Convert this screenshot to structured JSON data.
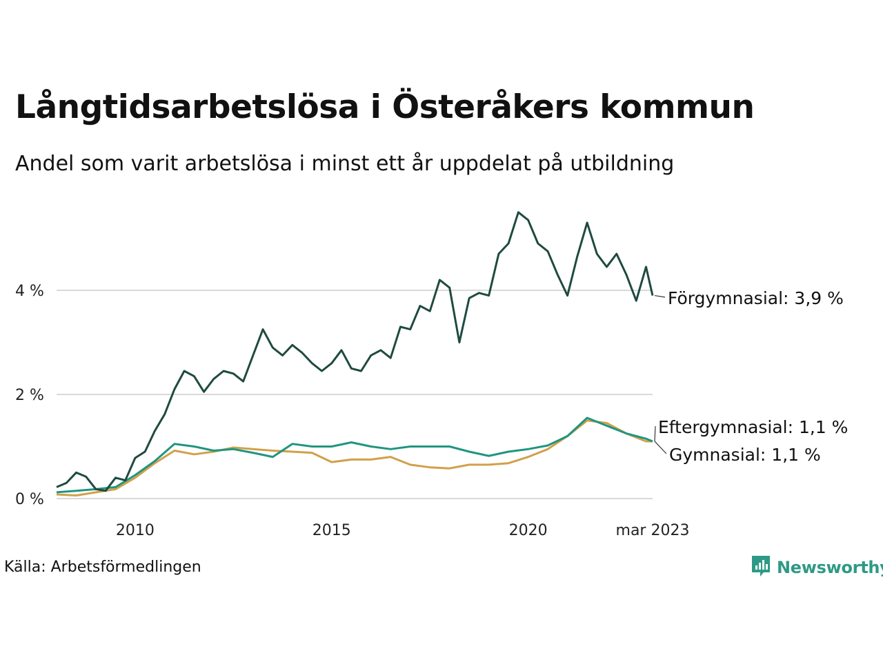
{
  "title": "Långtidsarbetslösa i Österåkers kommun",
  "subtitle": "Andel som varit arbetslösa i minst ett år uppdelat på utbildning",
  "source": "Källa: Arbetsförmedlingen",
  "brand": {
    "name": "Newsworthy",
    "icon": "newsworthy-logo-icon",
    "color": "#2e9a85"
  },
  "chart_data": {
    "type": "line",
    "title": "Långtidsarbetslösa i Österåkers kommun",
    "subtitle": "Andel som varit arbetslösa i minst ett år uppdelat på utbildning",
    "xlabel": "",
    "ylabel": "",
    "x_range": [
      "2008-01",
      "2023-03"
    ],
    "xticks": [
      {
        "x": "2010-01",
        "label": "2010"
      },
      {
        "x": "2015-01",
        "label": "2015"
      },
      {
        "x": "2020-01",
        "label": "2020"
      },
      {
        "x": "2023-03",
        "label": "mar 2023"
      }
    ],
    "ylim": [
      0,
      5.6
    ],
    "yticks": [
      {
        "value": 0,
        "label": "0 %"
      },
      {
        "value": 2,
        "label": "2 %"
      },
      {
        "value": 4,
        "label": "4 %"
      }
    ],
    "grid": "horizontal",
    "legend": "direct labels at line ends (right)",
    "series": [
      {
        "name": "Förgymnasial",
        "end_label": "Förgymnasial: 3,9 %",
        "color": "#1f4a40",
        "points": [
          [
            "2008-01",
            0.22
          ],
          [
            "2008-04",
            0.3
          ],
          [
            "2008-07",
            0.5
          ],
          [
            "2008-10",
            0.42
          ],
          [
            "2009-01",
            0.18
          ],
          [
            "2009-04",
            0.15
          ],
          [
            "2009-07",
            0.4
          ],
          [
            "2009-10",
            0.35
          ],
          [
            "2010-01",
            0.78
          ],
          [
            "2010-04",
            0.9
          ],
          [
            "2010-07",
            1.3
          ],
          [
            "2010-10",
            1.62
          ],
          [
            "2011-01",
            2.1
          ],
          [
            "2011-04",
            2.45
          ],
          [
            "2011-07",
            2.35
          ],
          [
            "2011-10",
            2.05
          ],
          [
            "2012-01",
            2.3
          ],
          [
            "2012-04",
            2.45
          ],
          [
            "2012-07",
            2.4
          ],
          [
            "2012-10",
            2.25
          ],
          [
            "2013-01",
            2.75
          ],
          [
            "2013-04",
            3.25
          ],
          [
            "2013-07",
            2.9
          ],
          [
            "2013-10",
            2.75
          ],
          [
            "2014-01",
            2.95
          ],
          [
            "2014-04",
            2.8
          ],
          [
            "2014-07",
            2.6
          ],
          [
            "2014-10",
            2.45
          ],
          [
            "2015-01",
            2.6
          ],
          [
            "2015-04",
            2.85
          ],
          [
            "2015-07",
            2.5
          ],
          [
            "2015-10",
            2.45
          ],
          [
            "2016-01",
            2.75
          ],
          [
            "2016-04",
            2.85
          ],
          [
            "2016-07",
            2.7
          ],
          [
            "2016-10",
            3.3
          ],
          [
            "2017-01",
            3.25
          ],
          [
            "2017-04",
            3.7
          ],
          [
            "2017-07",
            3.6
          ],
          [
            "2017-10",
            4.2
          ],
          [
            "2018-01",
            4.05
          ],
          [
            "2018-04",
            3.0
          ],
          [
            "2018-07",
            3.85
          ],
          [
            "2018-10",
            3.95
          ],
          [
            "2019-01",
            3.9
          ],
          [
            "2019-04",
            4.7
          ],
          [
            "2019-07",
            4.9
          ],
          [
            "2019-10",
            5.5
          ],
          [
            "2020-01",
            5.35
          ],
          [
            "2020-04",
            4.9
          ],
          [
            "2020-07",
            4.75
          ],
          [
            "2020-10",
            4.3
          ],
          [
            "2021-01",
            3.9
          ],
          [
            "2021-04",
            4.65
          ],
          [
            "2021-07",
            5.3
          ],
          [
            "2021-10",
            4.7
          ],
          [
            "2022-01",
            4.45
          ],
          [
            "2022-04",
            4.7
          ],
          [
            "2022-07",
            4.3
          ],
          [
            "2022-10",
            3.8
          ],
          [
            "2023-01",
            4.45
          ],
          [
            "2023-03",
            3.9
          ]
        ]
      },
      {
        "name": "Eftergymnasial",
        "end_label": "Eftergymnasial: 1,1 %",
        "color": "#1f9580",
        "points": [
          [
            "2008-01",
            0.12
          ],
          [
            "2008-07",
            0.15
          ],
          [
            "2009-01",
            0.18
          ],
          [
            "2009-07",
            0.22
          ],
          [
            "2010-01",
            0.45
          ],
          [
            "2010-07",
            0.72
          ],
          [
            "2011-01",
            1.05
          ],
          [
            "2011-07",
            1.0
          ],
          [
            "2012-01",
            0.92
          ],
          [
            "2012-07",
            0.95
          ],
          [
            "2013-01",
            0.88
          ],
          [
            "2013-07",
            0.8
          ],
          [
            "2014-01",
            1.05
          ],
          [
            "2014-07",
            1.0
          ],
          [
            "2015-01",
            1.0
          ],
          [
            "2015-07",
            1.08
          ],
          [
            "2016-01",
            1.0
          ],
          [
            "2016-07",
            0.95
          ],
          [
            "2017-01",
            1.0
          ],
          [
            "2017-07",
            1.0
          ],
          [
            "2018-01",
            1.0
          ],
          [
            "2018-07",
            0.9
          ],
          [
            "2019-01",
            0.82
          ],
          [
            "2019-07",
            0.9
          ],
          [
            "2020-01",
            0.95
          ],
          [
            "2020-07",
            1.02
          ],
          [
            "2021-01",
            1.2
          ],
          [
            "2021-07",
            1.55
          ],
          [
            "2022-01",
            1.4
          ],
          [
            "2022-07",
            1.25
          ],
          [
            "2023-01",
            1.15
          ],
          [
            "2023-03",
            1.1
          ]
        ]
      },
      {
        "name": "Gymnasial",
        "end_label": "Gymnasial: 1,1 %",
        "color": "#d1a04a",
        "points": [
          [
            "2008-01",
            0.08
          ],
          [
            "2008-07",
            0.06
          ],
          [
            "2009-01",
            0.12
          ],
          [
            "2009-07",
            0.18
          ],
          [
            "2010-01",
            0.4
          ],
          [
            "2010-07",
            0.68
          ],
          [
            "2011-01",
            0.92
          ],
          [
            "2011-07",
            0.85
          ],
          [
            "2012-01",
            0.9
          ],
          [
            "2012-07",
            0.98
          ],
          [
            "2013-01",
            0.95
          ],
          [
            "2013-07",
            0.92
          ],
          [
            "2014-01",
            0.9
          ],
          [
            "2014-07",
            0.88
          ],
          [
            "2015-01",
            0.7
          ],
          [
            "2015-07",
            0.75
          ],
          [
            "2016-01",
            0.75
          ],
          [
            "2016-07",
            0.8
          ],
          [
            "2017-01",
            0.65
          ],
          [
            "2017-07",
            0.6
          ],
          [
            "2018-01",
            0.58
          ],
          [
            "2018-07",
            0.65
          ],
          [
            "2019-01",
            0.65
          ],
          [
            "2019-07",
            0.68
          ],
          [
            "2020-01",
            0.8
          ],
          [
            "2020-07",
            0.95
          ],
          [
            "2021-01",
            1.2
          ],
          [
            "2021-07",
            1.5
          ],
          [
            "2022-01",
            1.45
          ],
          [
            "2022-07",
            1.25
          ],
          [
            "2023-01",
            1.1
          ],
          [
            "2023-03",
            1.1
          ]
        ]
      }
    ]
  }
}
